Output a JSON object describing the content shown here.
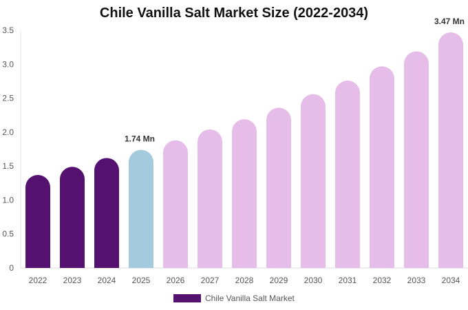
{
  "chart_data": {
    "type": "bar",
    "title": "Chile Vanilla Salt Market Size (2022-2034)",
    "xlabel": "",
    "ylabel": "",
    "categories": [
      "2022",
      "2023",
      "2024",
      "2025",
      "2026",
      "2027",
      "2028",
      "2029",
      "2030",
      "2031",
      "2032",
      "2033",
      "2034"
    ],
    "series": [
      {
        "name": "Chile Vanilla Salt Market",
        "values": [
          1.37,
          1.49,
          1.62,
          1.74,
          1.88,
          2.04,
          2.19,
          2.36,
          2.56,
          2.76,
          2.97,
          3.19,
          3.47
        ]
      }
    ],
    "ylim": [
      0,
      3.5
    ],
    "yticks": [
      "0",
      "0.5",
      "1.0",
      "1.5",
      "2.0",
      "2.5",
      "3.0",
      "3.5"
    ],
    "data_labels": [
      {
        "index": 3,
        "text": "1.74 Mn"
      },
      {
        "index": 12,
        "text": "3.47 Mn"
      }
    ],
    "colors": {
      "historical": "#541170",
      "current": "#a4cbdd",
      "forecast": "#e6bde8"
    },
    "historical_count": 3,
    "current_index": 3,
    "grid": false,
    "legend": "bottom"
  }
}
